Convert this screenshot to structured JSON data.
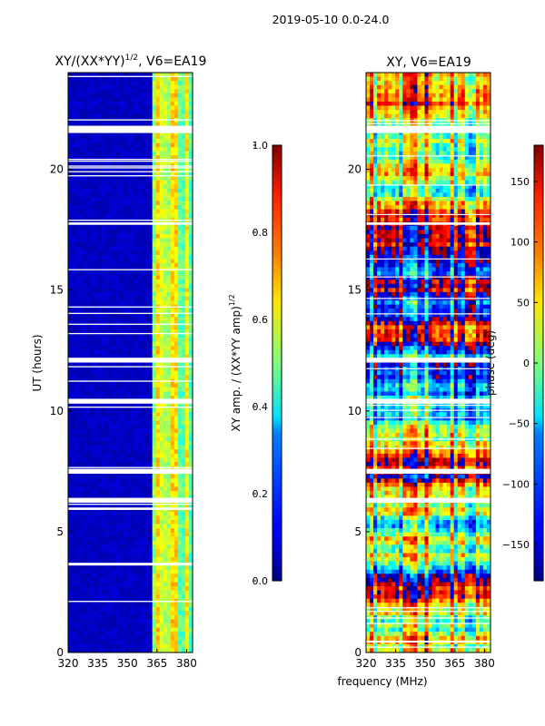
{
  "suptitle": "2019-05-10 0.0-24.0",
  "xlabel_shared": "frequency (MHz)",
  "chart_data": [
    {
      "type": "heatmap",
      "title_main": "XY/(XX*YY)",
      "title_sup": "1/2",
      "title_rest": ", V6=EA19",
      "ylabel": "UT (hours)",
      "xlim": [
        320,
        383
      ],
      "ylim": [
        0,
        24
      ],
      "x_ticks": [
        320,
        335,
        350,
        365,
        380
      ],
      "y_ticks": [
        0,
        5,
        10,
        15,
        20
      ],
      "colorbar": {
        "label_main": "XY amp. / (XX*YY amp)",
        "label_sup": "1/2",
        "range": [
          0.0,
          1.0
        ],
        "ticks": [
          "0.0",
          "0.2",
          "0.4",
          "0.6",
          "0.8",
          "1.0"
        ],
        "tick_values": [
          0.0,
          0.2,
          0.4,
          0.6,
          0.8,
          1.0
        ]
      },
      "blank_ut_bands": [
        [
          21.5,
          21.8
        ],
        [
          17.7,
          17.8
        ],
        [
          12.0,
          12.2
        ],
        [
          10.3,
          10.5
        ],
        [
          7.4,
          7.6
        ],
        [
          6.2,
          6.4
        ],
        [
          5.9,
          6.0
        ],
        [
          3.6,
          3.7
        ]
      ],
      "bright_freq_band_mhz": [
        362,
        383
      ]
    },
    {
      "type": "heatmap",
      "title": "XY, V6=EA19",
      "ylabel": "",
      "xlim": [
        320,
        383
      ],
      "ylim": [
        0,
        24
      ],
      "x_ticks": [
        320,
        335,
        350,
        365,
        380
      ],
      "y_ticks": [
        0,
        5,
        10,
        15,
        20
      ],
      "colorbar": {
        "label": "phase (deg)",
        "range": [
          -180,
          180
        ],
        "ticks": [
          "−150",
          "−100",
          "−50",
          "0",
          "50",
          "100",
          "150"
        ],
        "tick_values": [
          -150,
          -100,
          -50,
          0,
          50,
          100,
          150
        ]
      },
      "blank_ut_bands": [
        [
          21.5,
          21.8
        ],
        [
          17.7,
          17.8
        ],
        [
          12.0,
          12.2
        ],
        [
          10.3,
          10.5
        ],
        [
          7.4,
          7.6
        ],
        [
          6.2,
          6.4
        ]
      ]
    }
  ]
}
